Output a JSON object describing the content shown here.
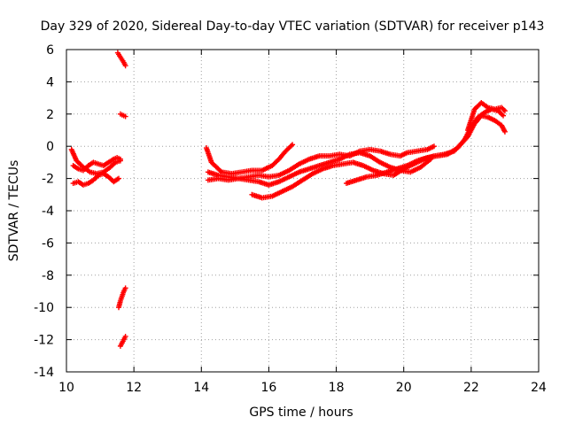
{
  "chart_data": {
    "type": "scatter",
    "title": "Day 329 of 2020, Sidereal Day-to-day VTEC variation (SDTVAR) for receiver p143",
    "xlabel": "GPS time / hours",
    "ylabel": "SDTVAR / TECUs",
    "xlim": [
      10,
      24
    ],
    "ylim": [
      -14,
      6
    ],
    "xticks": [
      10,
      12,
      14,
      16,
      18,
      20,
      22,
      24
    ],
    "yticks": [
      -14,
      -12,
      -10,
      -8,
      -6,
      -4,
      -2,
      0,
      2,
      4,
      6
    ],
    "grid": true,
    "marker": "+",
    "color": "#ff0000",
    "series": [
      {
        "name": "trace-1",
        "x": [
          10.2,
          10.35,
          10.5,
          10.65,
          10.8,
          10.95,
          11.1,
          11.25,
          11.4,
          11.5,
          11.6
        ],
        "y": [
          -1.2,
          -1.4,
          -1.5,
          -1.2,
          -1.0,
          -1.1,
          -1.2,
          -1.0,
          -0.8,
          -0.7,
          -0.8
        ]
      },
      {
        "name": "trace-2",
        "x": [
          10.2,
          10.35,
          10.5,
          10.65,
          10.8,
          10.95,
          11.1,
          11.25,
          11.4,
          11.55
        ],
        "y": [
          -2.3,
          -2.2,
          -2.4,
          -2.3,
          -2.1,
          -1.8,
          -1.7,
          -1.9,
          -2.2,
          -2.0
        ]
      },
      {
        "name": "trace-3",
        "x": [
          10.15,
          10.3,
          10.5,
          10.7,
          10.9,
          11.1,
          11.3,
          11.45,
          11.6
        ],
        "y": [
          -0.2,
          -0.9,
          -1.3,
          -1.6,
          -1.7,
          -1.6,
          -1.3,
          -1.0,
          -0.9
        ]
      },
      {
        "name": "trace-4",
        "x": [
          11.52,
          11.58,
          11.64,
          11.7,
          11.75
        ],
        "y": [
          5.8,
          5.6,
          5.4,
          5.2,
          5.0
        ]
      },
      {
        "name": "trace-5",
        "x": [
          11.6,
          11.65,
          11.7,
          11.75
        ],
        "y": [
          2.0,
          1.95,
          1.9,
          1.85
        ]
      },
      {
        "name": "trace-6",
        "x": [
          11.55,
          11.6,
          11.65,
          11.7,
          11.75
        ],
        "y": [
          -10.0,
          -9.6,
          -9.3,
          -9.0,
          -8.8
        ]
      },
      {
        "name": "trace-7",
        "x": [
          11.6,
          11.65,
          11.7,
          11.75
        ],
        "y": [
          -12.4,
          -12.2,
          -12.0,
          -11.8
        ]
      },
      {
        "name": "trace-8",
        "x": [
          14.15,
          14.3,
          14.6,
          14.9,
          15.2,
          15.5,
          15.8,
          16.1,
          16.3,
          16.5,
          16.7
        ],
        "y": [
          -0.1,
          -1.0,
          -1.6,
          -1.7,
          -1.6,
          -1.5,
          -1.5,
          -1.2,
          -0.8,
          -0.3,
          0.1
        ]
      },
      {
        "name": "trace-9",
        "x": [
          14.2,
          14.5,
          14.8,
          15.1,
          15.4,
          15.7,
          16.0,
          16.3,
          16.6,
          16.9,
          17.2,
          17.5,
          17.8,
          18.1,
          18.4,
          18.7,
          19.0,
          19.3,
          19.6,
          19.9,
          20.1,
          20.4,
          20.7,
          20.9
        ],
        "y": [
          -2.1,
          -2.0,
          -2.1,
          -2.0,
          -1.9,
          -1.8,
          -1.9,
          -1.8,
          -1.5,
          -1.1,
          -0.8,
          -0.6,
          -0.6,
          -0.5,
          -0.6,
          -0.3,
          -0.2,
          -0.3,
          -0.5,
          -0.6,
          -0.4,
          -0.3,
          -0.2,
          0.0
        ]
      },
      {
        "name": "trace-10",
        "x": [
          14.2,
          14.5,
          14.8,
          15.1,
          15.4,
          15.7,
          16.0,
          16.3,
          16.6,
          16.9,
          17.2,
          17.5,
          17.8,
          18.1,
          18.4,
          18.7,
          19.0,
          19.3,
          19.6,
          19.9,
          20.2,
          20.5,
          20.8
        ],
        "y": [
          -1.6,
          -1.8,
          -1.9,
          -2.0,
          -2.1,
          -2.2,
          -2.4,
          -2.2,
          -1.9,
          -1.6,
          -1.4,
          -1.2,
          -1.0,
          -0.8,
          -0.5,
          -0.4,
          -0.6,
          -1.0,
          -1.3,
          -1.5,
          -1.6,
          -1.3,
          -0.8
        ]
      },
      {
        "name": "trace-11",
        "x": [
          15.5,
          15.8,
          16.1,
          16.4,
          16.7,
          17.0,
          17.3,
          17.6,
          17.9,
          18.2,
          18.5,
          18.8,
          19.1,
          19.4,
          19.7,
          20.0,
          20.3,
          20.6,
          20.9,
          21.2,
          21.5,
          21.8,
          22.0,
          22.2,
          22.4,
          22.6,
          22.8,
          22.95
        ],
        "y": [
          -3.0,
          -3.2,
          -3.1,
          -2.8,
          -2.5,
          -2.1,
          -1.7,
          -1.4,
          -1.2,
          -1.1,
          -1.0,
          -1.2,
          -1.5,
          -1.7,
          -1.8,
          -1.4,
          -1.1,
          -0.8,
          -0.6,
          -0.5,
          -0.3,
          0.4,
          1.2,
          1.8,
          2.1,
          2.3,
          2.2,
          1.9
        ]
      },
      {
        "name": "trace-12",
        "x": [
          18.3,
          18.6,
          18.9,
          19.2,
          19.5,
          19.8,
          20.1,
          20.4,
          20.7,
          21.0,
          21.3,
          21.6,
          21.9,
          22.1,
          22.3,
          22.5,
          22.7,
          22.9,
          23.0
        ],
        "y": [
          -2.3,
          -2.1,
          -1.9,
          -1.8,
          -1.6,
          -1.4,
          -1.2,
          -0.9,
          -0.7,
          -0.6,
          -0.5,
          -0.1,
          0.6,
          1.4,
          1.9,
          1.8,
          1.6,
          1.3,
          0.9
        ]
      },
      {
        "name": "trace-13",
        "x": [
          21.9,
          22.1,
          22.3,
          22.5,
          22.7,
          22.9,
          23.0
        ],
        "y": [
          1.0,
          2.3,
          2.7,
          2.4,
          2.3,
          2.4,
          2.2
        ]
      }
    ]
  }
}
